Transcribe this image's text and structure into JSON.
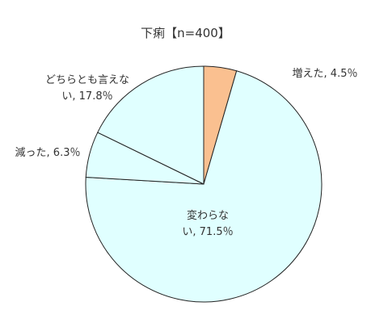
{
  "chart_data": {
    "type": "pie",
    "title": "下痢【n=400】",
    "categories": [
      "増えた",
      "変わらない",
      "減った",
      "どちらとも言えない"
    ],
    "values": [
      4.5,
      71.5,
      6.3,
      17.8
    ],
    "value_labels": [
      "4.5％",
      "71.5％",
      "6.3％",
      "17.8％"
    ],
    "label_separator": ", ",
    "colors": [
      "#fac090",
      "#e0ffff",
      "#e0ffff",
      "#e0ffff"
    ]
  }
}
